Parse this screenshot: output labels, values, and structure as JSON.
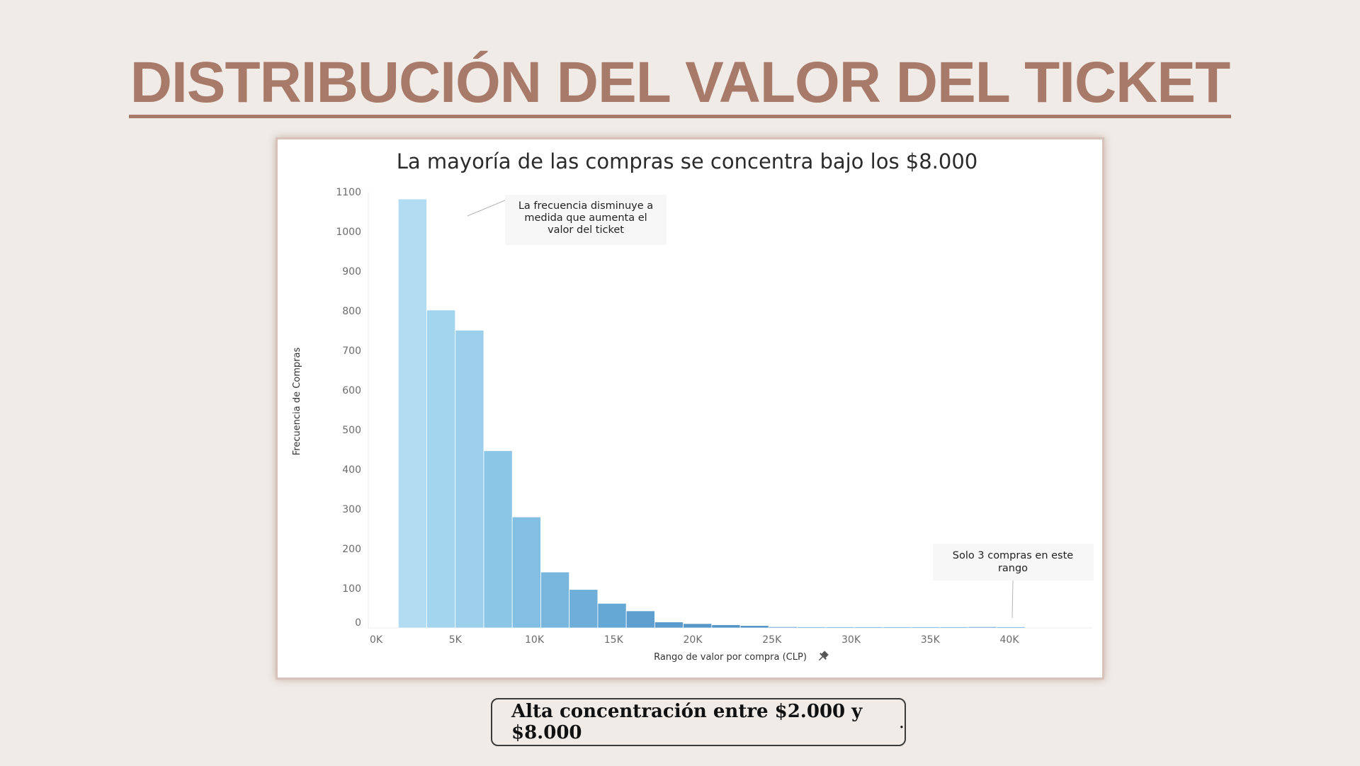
{
  "page": {
    "title": "DISTRIBUCIÓN DEL VALOR DEL TICKET",
    "summary_bold": "Alta concentración entre $2.000 y $8.000",
    "summary_tail": "."
  },
  "chart_data": {
    "type": "bar",
    "title": "La mayoría de las compras se concentra bajo los $8.000",
    "xlabel": "Rango de valor por compra (CLP)",
    "ylabel": "Frecuencia de Compras",
    "ylim": [
      0,
      1100
    ],
    "xlim": [
      0,
      42500
    ],
    "bin_width": 1800,
    "x_ticks": [
      {
        "value": 0,
        "label": "0K"
      },
      {
        "value": 5000,
        "label": "5K"
      },
      {
        "value": 10000,
        "label": "10K"
      },
      {
        "value": 15000,
        "label": "15K"
      },
      {
        "value": 20000,
        "label": "20K"
      },
      {
        "value": 25000,
        "label": "25K"
      },
      {
        "value": 30000,
        "label": "30K"
      },
      {
        "value": 35000,
        "label": "35K"
      },
      {
        "value": 40000,
        "label": "40K"
      }
    ],
    "y_ticks": [
      0,
      100,
      200,
      300,
      400,
      500,
      600,
      700,
      800,
      900,
      1000,
      1100
    ],
    "bins": [
      {
        "x0": 1400,
        "value": 1082
      },
      {
        "x0": 3200,
        "value": 802
      },
      {
        "x0": 5000,
        "value": 751
      },
      {
        "x0": 6800,
        "value": 447
      },
      {
        "x0": 8600,
        "value": 280
      },
      {
        "x0": 10400,
        "value": 141
      },
      {
        "x0": 12200,
        "value": 97
      },
      {
        "x0": 14000,
        "value": 62
      },
      {
        "x0": 15800,
        "value": 43
      },
      {
        "x0": 17600,
        "value": 15
      },
      {
        "x0": 19400,
        "value": 11
      },
      {
        "x0": 21200,
        "value": 8
      },
      {
        "x0": 23000,
        "value": 6
      },
      {
        "x0": 24800,
        "value": 3
      },
      {
        "x0": 26600,
        "value": 2
      },
      {
        "x0": 28400,
        "value": 2
      },
      {
        "x0": 30200,
        "value": 2
      },
      {
        "x0": 32000,
        "value": 1
      },
      {
        "x0": 33800,
        "value": 1
      },
      {
        "x0": 35600,
        "value": 1
      },
      {
        "x0": 37400,
        "value": 3
      },
      {
        "x0": 39200,
        "value": 1
      }
    ],
    "colors": [
      "#b1dcf1",
      "#a3d5ef",
      "#9ccfec",
      "#8cc6e6",
      "#83bfe3",
      "#79b6de",
      "#6eaed9",
      "#66a8d5",
      "#5f9fcf",
      "#5b9ccc",
      "#5898c9",
      "#5595c7"
    ],
    "annotations": [
      {
        "text_lines": [
          "La frecuencia disminuye a",
          "medida que aumenta el",
          "valor del ticket"
        ],
        "target_x": 5400,
        "target_y": 1000
      },
      {
        "text_lines": [
          "Solo 3 compras en este",
          "rango"
        ],
        "target_x": 38300,
        "target_y": 20
      }
    ]
  }
}
